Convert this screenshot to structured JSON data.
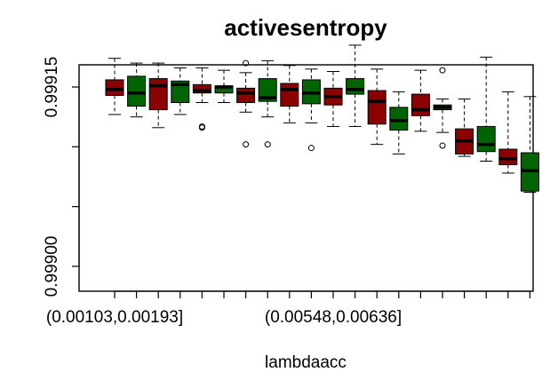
{
  "chart_data": {
    "type": "boxplot",
    "title": "activesentropy",
    "xlabel": "lambdaacc",
    "ylabel": "",
    "ylim": [
      0.999,
      0.99915
    ],
    "y_ticks": [
      0.999,
      0.99905,
      0.9991,
      0.99915
    ],
    "y_tick_labels": [
      "0.99900",
      "",
      "",
      "0.99915"
    ],
    "x_tick_labels": [
      "(0.00103,0.00193]",
      "(0.00548,0.00636]"
    ],
    "colors": {
      "a": "#8b0000",
      "b": "#006400"
    },
    "groups": [
      {
        "color": "a",
        "whisker_low": 0.999127,
        "q1": 0.999143,
        "median": 0.999148,
        "q3": 0.999156,
        "whisker_high": 0.999174,
        "outliers": []
      },
      {
        "color": "b",
        "whisker_low": 0.999125,
        "q1": 0.999134,
        "median": 0.999145,
        "q3": 0.999159,
        "whisker_high": 0.99917,
        "outliers": []
      },
      {
        "color": "a",
        "whisker_low": 0.999116,
        "q1": 0.999131,
        "median": 0.999151,
        "q3": 0.999157,
        "whisker_high": 0.99917,
        "outliers": []
      },
      {
        "color": "b",
        "whisker_low": 0.999127,
        "q1": 0.999137,
        "median": 0.999152,
        "q3": 0.999155,
        "whisker_high": 0.999166,
        "outliers": []
      },
      {
        "color": "a",
        "whisker_low": 0.999137,
        "q1": 0.999145,
        "median": 0.999147,
        "q3": 0.999152,
        "whisker_high": 0.999166,
        "outliers": [
          0.999117,
          0.999116
        ]
      },
      {
        "color": "b",
        "whisker_low": 0.999137,
        "q1": 0.999145,
        "median": 0.99915,
        "q3": 0.999151,
        "whisker_high": 0.999164,
        "outliers": []
      },
      {
        "color": "a",
        "whisker_low": 0.999129,
        "q1": 0.999137,
        "median": 0.999145,
        "q3": 0.999149,
        "whisker_high": 0.999162,
        "outliers": [
          0.999102,
          0.99917
        ]
      },
      {
        "color": "b",
        "whisker_low": 0.999125,
        "q1": 0.999138,
        "median": 0.999141,
        "q3": 0.999157,
        "whisker_high": 0.999172,
        "outliers": [
          0.999102
        ]
      },
      {
        "color": "a",
        "whisker_low": 0.99912,
        "q1": 0.999134,
        "median": 0.999148,
        "q3": 0.999153,
        "whisker_high": 0.999168,
        "outliers": []
      },
      {
        "color": "b",
        "whisker_low": 0.99912,
        "q1": 0.999136,
        "median": 0.999145,
        "q3": 0.999156,
        "whisker_high": 0.999165,
        "outliers": [
          0.999099
        ]
      },
      {
        "color": "a",
        "whisker_low": 0.999117,
        "q1": 0.999135,
        "median": 0.999142,
        "q3": 0.999149,
        "whisker_high": 0.999163,
        "outliers": []
      },
      {
        "color": "b",
        "whisker_low": 0.999117,
        "q1": 0.999144,
        "median": 0.999148,
        "q3": 0.999157,
        "whisker_high": 0.999185,
        "outliers": []
      },
      {
        "color": "a",
        "whisker_low": 0.999102,
        "q1": 0.999119,
        "median": 0.999138,
        "q3": 0.999147,
        "whisker_high": 0.999165,
        "outliers": []
      },
      {
        "color": "b",
        "whisker_low": 0.999094,
        "q1": 0.999114,
        "median": 0.999122,
        "q3": 0.999133,
        "whisker_high": 0.999146,
        "outliers": []
      },
      {
        "color": "a",
        "whisker_low": 0.999113,
        "q1": 0.999126,
        "median": 0.999131,
        "q3": 0.999144,
        "whisker_high": 0.999164,
        "outliers": []
      },
      {
        "color": "b",
        "whisker_low": 0.999112,
        "q1": 0.999131,
        "median": 0.999133,
        "q3": 0.999135,
        "whisker_high": 0.99914,
        "outliers": [
          0.999101,
          0.999164
        ]
      },
      {
        "color": "a",
        "whisker_low": 0.999092,
        "q1": 0.999094,
        "median": 0.999105,
        "q3": 0.999115,
        "whisker_high": 0.99914,
        "outliers": []
      },
      {
        "color": "b",
        "whisker_low": 0.999088,
        "q1": 0.999096,
        "median": 0.999102,
        "q3": 0.999117,
        "whisker_high": 0.999175,
        "outliers": []
      },
      {
        "color": "a",
        "whisker_low": 0.999078,
        "q1": 0.999085,
        "median": 0.99909,
        "q3": 0.999098,
        "whisker_high": 0.999146,
        "outliers": []
      },
      {
        "color": "b",
        "whisker_low": 0.999062,
        "q1": 0.999063,
        "median": 0.99908,
        "q3": 0.999095,
        "whisker_high": 0.999142,
        "outliers": []
      }
    ]
  }
}
